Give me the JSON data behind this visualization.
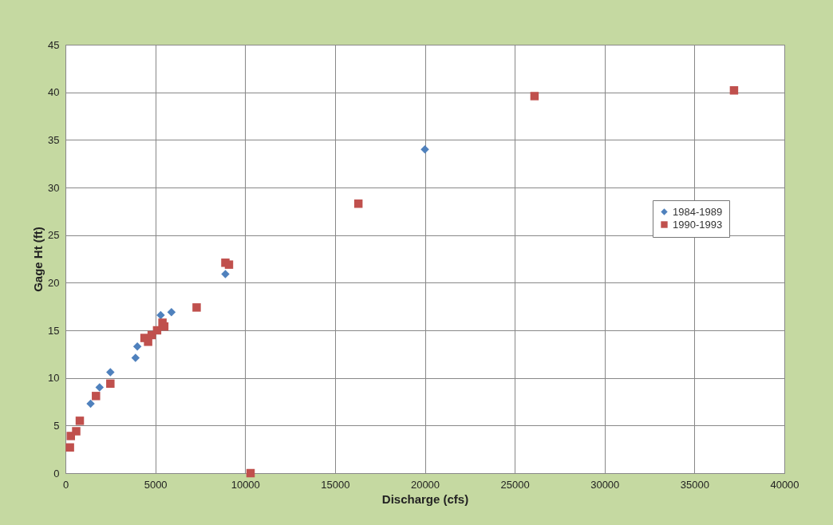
{
  "chart_data": {
    "type": "scatter",
    "xlabel": "Discharge (cfs)",
    "ylabel": "Gage Ht (ft)",
    "xlim": [
      0,
      40000
    ],
    "xticks": [
      0,
      5000,
      10000,
      15000,
      20000,
      25000,
      30000,
      35000,
      40000
    ],
    "ylim": [
      0,
      45
    ],
    "yticks": [
      0,
      5,
      10,
      15,
      20,
      25,
      30,
      35,
      40,
      45
    ],
    "grid": true,
    "legend": "right",
    "series": [
      {
        "name": "1984-1989",
        "color": "#4f81bd",
        "marker": "diamond",
        "x": [
          1400,
          1900,
          2500,
          3900,
          4000,
          5300,
          5900,
          8900,
          20000
        ],
        "values": [
          7.3,
          9.0,
          10.6,
          12.1,
          13.3,
          16.6,
          16.9,
          20.9,
          34.0
        ]
      },
      {
        "name": "1990-1993",
        "color": "#c0504d",
        "marker": "square",
        "x": [
          250,
          300,
          600,
          800,
          1700,
          2500,
          4400,
          4600,
          4800,
          5100,
          5400,
          5500,
          7300,
          8900,
          9100,
          10300,
          16300,
          26100,
          37200
        ],
        "values": [
          2.7,
          3.9,
          4.4,
          5.5,
          8.1,
          9.4,
          14.2,
          13.8,
          14.5,
          15.0,
          15.8,
          15.4,
          17.4,
          22.1,
          21.9,
          0.0,
          28.3,
          39.6,
          40.2
        ]
      }
    ]
  }
}
